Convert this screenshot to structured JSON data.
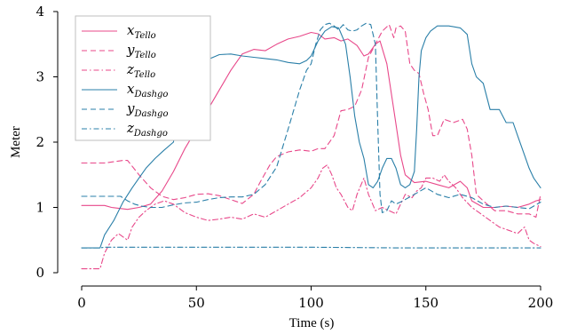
{
  "chart_data": {
    "type": "line",
    "xlabel": "Time (s)",
    "ylabel": "Meter",
    "xlim": [
      0,
      200
    ],
    "ylim": [
      0,
      4
    ],
    "xticks": [
      "0",
      "50",
      "100",
      "150",
      "200"
    ],
    "yticks": [
      "0",
      "1",
      "2",
      "3",
      "4"
    ],
    "grid": false,
    "legend_position": "top-left",
    "series": [
      {
        "name": "x",
        "subscript": "Tello",
        "color": "#e8488a",
        "dash": "solid",
        "points": [
          [
            0,
            1.03
          ],
          [
            10,
            1.03
          ],
          [
            13,
            1.0
          ],
          [
            20,
            0.97
          ],
          [
            25,
            1.0
          ],
          [
            30,
            1.05
          ],
          [
            35,
            1.25
          ],
          [
            40,
            1.55
          ],
          [
            45,
            1.9
          ],
          [
            50,
            2.2
          ],
          [
            55,
            2.5
          ],
          [
            60,
            2.8
          ],
          [
            65,
            3.1
          ],
          [
            70,
            3.35
          ],
          [
            75,
            3.42
          ],
          [
            80,
            3.4
          ],
          [
            85,
            3.5
          ],
          [
            90,
            3.58
          ],
          [
            95,
            3.62
          ],
          [
            100,
            3.68
          ],
          [
            103,
            3.66
          ],
          [
            106,
            3.58
          ],
          [
            110,
            3.6
          ],
          [
            113,
            3.55
          ],
          [
            116,
            3.58
          ],
          [
            120,
            3.48
          ],
          [
            123,
            3.32
          ],
          [
            125,
            3.35
          ],
          [
            128,
            3.5
          ],
          [
            130,
            3.55
          ],
          [
            133,
            3.2
          ],
          [
            136,
            2.5
          ],
          [
            139,
            1.8
          ],
          [
            141,
            1.5
          ],
          [
            145,
            1.38
          ],
          [
            150,
            1.4
          ],
          [
            155,
            1.35
          ],
          [
            160,
            1.3
          ],
          [
            165,
            1.4
          ],
          [
            168,
            1.3
          ],
          [
            170,
            1.1
          ],
          [
            175,
            1.0
          ],
          [
            180,
            1.0
          ],
          [
            185,
            1.02
          ],
          [
            190,
            1.0
          ],
          [
            195,
            1.05
          ],
          [
            198,
            1.1
          ],
          [
            200,
            1.12
          ]
        ]
      },
      {
        "name": "y",
        "subscript": "Tello",
        "color": "#e8488a",
        "dash": "6,4",
        "points": [
          [
            0,
            1.68
          ],
          [
            10,
            1.68
          ],
          [
            18,
            1.72
          ],
          [
            20,
            1.72
          ],
          [
            25,
            1.5
          ],
          [
            30,
            1.3
          ],
          [
            35,
            1.17
          ],
          [
            40,
            1.12
          ],
          [
            45,
            1.15
          ],
          [
            50,
            1.2
          ],
          [
            55,
            1.21
          ],
          [
            60,
            1.18
          ],
          [
            65,
            1.12
          ],
          [
            70,
            1.06
          ],
          [
            75,
            1.2
          ],
          [
            78,
            1.4
          ],
          [
            82,
            1.65
          ],
          [
            85,
            1.78
          ],
          [
            90,
            1.85
          ],
          [
            95,
            1.88
          ],
          [
            100,
            1.86
          ],
          [
            103,
            1.9
          ],
          [
            106,
            1.9
          ],
          [
            110,
            2.1
          ],
          [
            113,
            2.48
          ],
          [
            116,
            2.5
          ],
          [
            119,
            2.55
          ],
          [
            122,
            2.8
          ],
          [
            125,
            3.3
          ],
          [
            128,
            3.5
          ],
          [
            131,
            3.7
          ],
          [
            134,
            3.8
          ],
          [
            136,
            3.6
          ],
          [
            137,
            3.75
          ],
          [
            139,
            3.78
          ],
          [
            141,
            3.7
          ],
          [
            143,
            3.2
          ],
          [
            145,
            3.1
          ],
          [
            147,
            3.05
          ],
          [
            149,
            2.75
          ],
          [
            151,
            2.5
          ],
          [
            153,
            2.1
          ],
          [
            155,
            2.1
          ],
          [
            158,
            2.35
          ],
          [
            162,
            2.3
          ],
          [
            166,
            2.35
          ],
          [
            168,
            2.2
          ],
          [
            170,
            1.8
          ],
          [
            172,
            1.2
          ],
          [
            175,
            1.1
          ],
          [
            180,
            0.95
          ],
          [
            185,
            0.95
          ],
          [
            190,
            0.9
          ],
          [
            195,
            0.9
          ],
          [
            198,
            0.85
          ],
          [
            200,
            1.2
          ]
        ]
      },
      {
        "name": "z",
        "subscript": "Tello",
        "color": "#e8488a",
        "dash": "6,3,1.5,3",
        "points": [
          [
            0,
            0.06
          ],
          [
            8,
            0.06
          ],
          [
            10,
            0.3
          ],
          [
            13,
            0.5
          ],
          [
            16,
            0.6
          ],
          [
            20,
            0.5
          ],
          [
            22,
            0.7
          ],
          [
            25,
            0.85
          ],
          [
            28,
            0.95
          ],
          [
            32,
            1.05
          ],
          [
            36,
            1.1
          ],
          [
            40,
            1.05
          ],
          [
            45,
            0.92
          ],
          [
            50,
            0.85
          ],
          [
            55,
            0.8
          ],
          [
            60,
            0.82
          ],
          [
            65,
            0.85
          ],
          [
            70,
            0.82
          ],
          [
            75,
            0.9
          ],
          [
            80,
            0.85
          ],
          [
            85,
            0.95
          ],
          [
            90,
            1.05
          ],
          [
            95,
            1.15
          ],
          [
            100,
            1.3
          ],
          [
            103,
            1.45
          ],
          [
            105,
            1.6
          ],
          [
            107,
            1.65
          ],
          [
            109,
            1.5
          ],
          [
            111,
            1.3
          ],
          [
            113,
            1.2
          ],
          [
            116,
            1.0
          ],
          [
            118,
            0.95
          ],
          [
            120,
            1.2
          ],
          [
            123,
            1.45
          ],
          [
            125,
            1.2
          ],
          [
            128,
            0.95
          ],
          [
            131,
            1.0
          ],
          [
            134,
            0.95
          ],
          [
            137,
            0.9
          ],
          [
            141,
            1.2
          ],
          [
            144,
            1.15
          ],
          [
            146,
            1.25
          ],
          [
            148,
            1.3
          ],
          [
            150,
            1.45
          ],
          [
            153,
            1.45
          ],
          [
            156,
            1.4
          ],
          [
            158,
            1.5
          ],
          [
            160,
            1.4
          ],
          [
            163,
            1.3
          ],
          [
            166,
            1.15
          ],
          [
            170,
            1.0
          ],
          [
            174,
            0.9
          ],
          [
            178,
            0.8
          ],
          [
            182,
            0.7
          ],
          [
            186,
            0.65
          ],
          [
            190,
            0.6
          ],
          [
            193,
            0.7
          ],
          [
            195,
            0.5
          ],
          [
            197,
            0.45
          ],
          [
            200,
            0.4
          ]
        ]
      },
      {
        "name": "x",
        "subscript": "Dashgo",
        "color": "#2a7fa8",
        "dash": "solid",
        "points": [
          [
            0,
            0.38
          ],
          [
            8,
            0.38
          ],
          [
            10,
            0.58
          ],
          [
            14,
            0.8
          ],
          [
            18,
            1.08
          ],
          [
            22,
            1.3
          ],
          [
            25,
            1.45
          ],
          [
            28,
            1.6
          ],
          [
            32,
            1.75
          ],
          [
            36,
            1.88
          ],
          [
            40,
            2.0
          ],
          [
            42,
            2.5
          ],
          [
            45,
            2.9
          ],
          [
            48,
            3.05
          ],
          [
            52,
            3.2
          ],
          [
            56,
            3.28
          ],
          [
            60,
            3.34
          ],
          [
            65,
            3.35
          ],
          [
            70,
            3.32
          ],
          [
            75,
            3.3
          ],
          [
            80,
            3.28
          ],
          [
            85,
            3.26
          ],
          [
            90,
            3.22
          ],
          [
            95,
            3.2
          ],
          [
            98,
            3.25
          ],
          [
            100,
            3.32
          ],
          [
            103,
            3.55
          ],
          [
            106,
            3.7
          ],
          [
            109,
            3.77
          ],
          [
            112,
            3.75
          ],
          [
            115,
            3.5
          ],
          [
            117,
            3.0
          ],
          [
            119,
            2.4
          ],
          [
            121,
            2.0
          ],
          [
            123,
            1.75
          ],
          [
            125,
            1.35
          ],
          [
            127,
            1.3
          ],
          [
            129,
            1.4
          ],
          [
            131,
            1.6
          ],
          [
            133,
            1.75
          ],
          [
            135,
            1.75
          ],
          [
            137,
            1.6
          ],
          [
            139,
            1.35
          ],
          [
            141,
            1.3
          ],
          [
            143,
            1.35
          ],
          [
            145,
            1.55
          ],
          [
            146,
            2.2
          ],
          [
            147,
            3.0
          ],
          [
            148,
            3.4
          ],
          [
            150,
            3.6
          ],
          [
            152,
            3.7
          ],
          [
            155,
            3.78
          ],
          [
            160,
            3.78
          ],
          [
            165,
            3.75
          ],
          [
            168,
            3.65
          ],
          [
            170,
            3.2
          ],
          [
            172,
            3.0
          ],
          [
            175,
            2.9
          ],
          [
            178,
            2.5
          ],
          [
            182,
            2.5
          ],
          [
            185,
            2.3
          ],
          [
            188,
            2.3
          ],
          [
            190,
            2.1
          ],
          [
            193,
            1.8
          ],
          [
            195,
            1.6
          ],
          [
            197,
            1.45
          ],
          [
            200,
            1.3
          ]
        ]
      },
      {
        "name": "y",
        "subscript": "Dashgo",
        "color": "#2a7fa8",
        "dash": "6,4",
        "points": [
          [
            0,
            1.17
          ],
          [
            17,
            1.17
          ],
          [
            20,
            1.1
          ],
          [
            23,
            1.05
          ],
          [
            26,
            1.02
          ],
          [
            30,
            1.0
          ],
          [
            35,
            1.0
          ],
          [
            40,
            1.04
          ],
          [
            45,
            1.07
          ],
          [
            50,
            1.08
          ],
          [
            55,
            1.12
          ],
          [
            60,
            1.15
          ],
          [
            65,
            1.16
          ],
          [
            70,
            1.16
          ],
          [
            75,
            1.2
          ],
          [
            80,
            1.35
          ],
          [
            85,
            1.62
          ],
          [
            90,
            2.2
          ],
          [
            95,
            2.8
          ],
          [
            98,
            3.1
          ],
          [
            100,
            3.2
          ],
          [
            102,
            3.5
          ],
          [
            104,
            3.72
          ],
          [
            106,
            3.8
          ],
          [
            108,
            3.82
          ],
          [
            110,
            3.78
          ],
          [
            112,
            3.72
          ],
          [
            114,
            3.8
          ],
          [
            116,
            3.72
          ],
          [
            118,
            3.7
          ],
          [
            120,
            3.72
          ],
          [
            122,
            3.78
          ],
          [
            124,
            3.82
          ],
          [
            126,
            3.8
          ],
          [
            128,
            3.5
          ],
          [
            129,
            2.3
          ],
          [
            130,
            1.2
          ],
          [
            131,
            0.92
          ],
          [
            133,
            0.95
          ],
          [
            135,
            1.1
          ],
          [
            137,
            1.05
          ],
          [
            140,
            1.1
          ],
          [
            145,
            1.2
          ],
          [
            150,
            1.3
          ],
          [
            155,
            1.2
          ],
          [
            160,
            1.15
          ],
          [
            165,
            1.2
          ],
          [
            170,
            1.15
          ],
          [
            175,
            1.05
          ],
          [
            180,
            1.0
          ],
          [
            185,
            1.02
          ],
          [
            190,
            1.0
          ],
          [
            195,
            0.98
          ],
          [
            200,
            1.08
          ]
        ]
      },
      {
        "name": "z",
        "subscript": "Dashgo",
        "color": "#2a7fa8",
        "dash": "6,3,1.5,3",
        "points": [
          [
            0,
            0.38
          ],
          [
            8,
            0.38
          ],
          [
            10,
            0.39
          ],
          [
            30,
            0.39
          ],
          [
            60,
            0.39
          ],
          [
            100,
            0.39
          ],
          [
            140,
            0.38
          ],
          [
            170,
            0.38
          ],
          [
            200,
            0.38
          ]
        ]
      }
    ]
  }
}
